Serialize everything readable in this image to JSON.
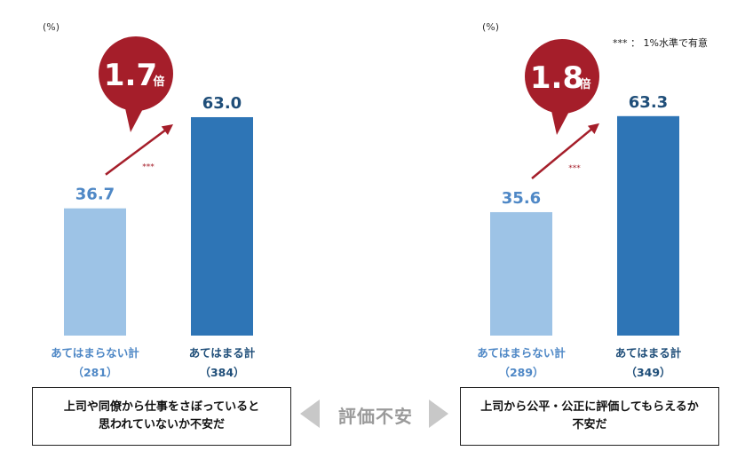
{
  "sig_note": "*** ： 1%水準で有意",
  "center_label": "評価不安",
  "charts": [
    {
      "unit": "(%)",
      "ratio_number": "1.7",
      "ratio_suffix": "倍",
      "sig_mark": "***",
      "caption": "上司や同僚から仕事をさぼっていると\n思われていないか不安だ",
      "chart_data": {
        "type": "bar",
        "categories": [
          "あてはまらない計",
          "あてはまる計"
        ],
        "n_labels": [
          "（281）",
          "（384）"
        ],
        "values": [
          36.7,
          63.0
        ],
        "value_labels": [
          "36.7",
          "63.0"
        ],
        "ylim": [
          0,
          100
        ],
        "grid": false,
        "colors": [
          "#9DC3E6",
          "#2E75B6"
        ]
      }
    },
    {
      "unit": "(%)",
      "ratio_number": "1.8",
      "ratio_suffix": "倍",
      "sig_mark": "***",
      "caption": "上司から公平・公正に評価してもらえるか\n不安だ",
      "chart_data": {
        "type": "bar",
        "categories": [
          "あてはまらない計",
          "あてはまる計"
        ],
        "n_labels": [
          "（289）",
          "（349）"
        ],
        "values": [
          35.6,
          63.3
        ],
        "value_labels": [
          "35.6",
          "63.3"
        ],
        "ylim": [
          0,
          100
        ],
        "grid": false,
        "colors": [
          "#9DC3E6",
          "#2E75B6"
        ]
      }
    }
  ],
  "colors": {
    "bubble": "#A51E2A",
    "arrow": "#A51E2A",
    "label_light": "#4F88C6",
    "label_dark": "#1F4E79",
    "center_arrow": "#C8C8C8"
  }
}
